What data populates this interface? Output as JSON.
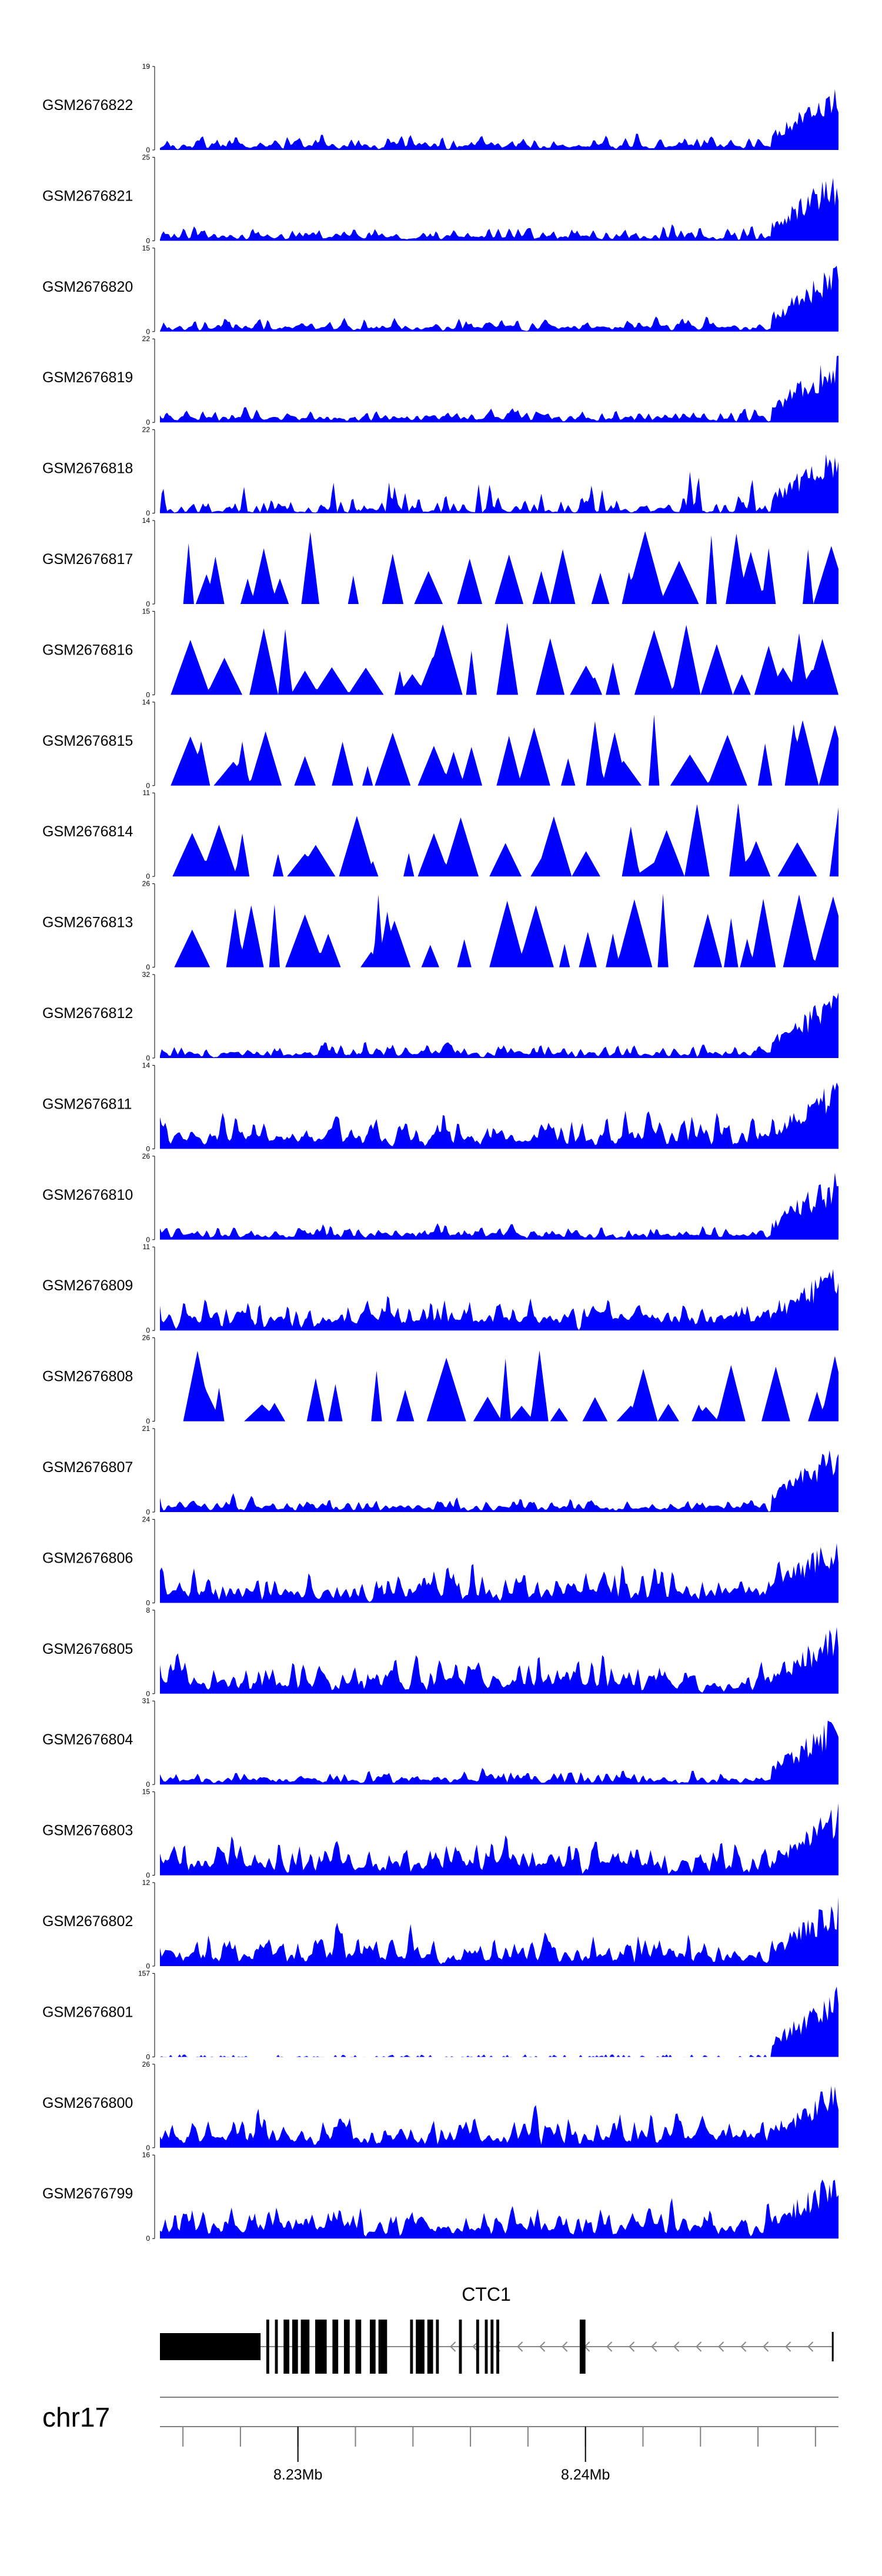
{
  "chart_data": {
    "type": "area",
    "title": "",
    "x_unit": "Mb",
    "xlim": [
      8.2252,
      8.2488
    ],
    "tracks": [
      {
        "name": "GSM2676822",
        "ymax": 19,
        "ymin": 0,
        "seed": 11,
        "style": "dense"
      },
      {
        "name": "GSM2676821",
        "ymax": 25,
        "ymin": 0,
        "seed": 12,
        "style": "dense"
      },
      {
        "name": "GSM2676820",
        "ymax": 15,
        "ymin": 0,
        "seed": 13,
        "style": "dense"
      },
      {
        "name": "GSM2676819",
        "ymax": 22,
        "ymin": 0,
        "seed": 14,
        "style": "dense"
      },
      {
        "name": "GSM2676818",
        "ymax": 22,
        "ymin": 0,
        "seed": 15,
        "style": "spiky"
      },
      {
        "name": "GSM2676817",
        "ymax": 14,
        "ymin": 0,
        "seed": 16,
        "style": "sparse"
      },
      {
        "name": "GSM2676816",
        "ymax": 15,
        "ymin": 0,
        "seed": 17,
        "style": "sparse"
      },
      {
        "name": "GSM2676815",
        "ymax": 14,
        "ymin": 0,
        "seed": 18,
        "style": "sparse"
      },
      {
        "name": "GSM2676814",
        "ymax": 11,
        "ymin": 0,
        "seed": 19,
        "style": "sparse"
      },
      {
        "name": "GSM2676813",
        "ymax": 26,
        "ymin": 0,
        "seed": 20,
        "style": "sparse"
      },
      {
        "name": "GSM2676812",
        "ymax": 32,
        "ymin": 0,
        "seed": 21,
        "style": "dense"
      },
      {
        "name": "GSM2676811",
        "ymax": 14,
        "ymin": 0,
        "seed": 22,
        "style": "busy"
      },
      {
        "name": "GSM2676810",
        "ymax": 26,
        "ymin": 0,
        "seed": 23,
        "style": "dense"
      },
      {
        "name": "GSM2676809",
        "ymax": 11,
        "ymin": 0,
        "seed": 24,
        "style": "busy"
      },
      {
        "name": "GSM2676808",
        "ymax": 26,
        "ymin": 0,
        "seed": 25,
        "style": "sparse"
      },
      {
        "name": "GSM2676807",
        "ymax": 21,
        "ymin": 0,
        "seed": 26,
        "style": "dense"
      },
      {
        "name": "GSM2676806",
        "ymax": 24,
        "ymin": 0,
        "seed": 27,
        "style": "busy"
      },
      {
        "name": "GSM2676805",
        "ymax": 8,
        "ymin": 0,
        "seed": 28,
        "style": "busy"
      },
      {
        "name": "GSM2676804",
        "ymax": 31,
        "ymin": 0,
        "seed": 29,
        "style": "dense"
      },
      {
        "name": "GSM2676803",
        "ymax": 15,
        "ymin": 0,
        "seed": 30,
        "style": "busy"
      },
      {
        "name": "GSM2676802",
        "ymax": 12,
        "ymin": 0,
        "seed": 31,
        "style": "busy"
      },
      {
        "name": "GSM2676801",
        "ymax": 157,
        "ymin": 0,
        "seed": 32,
        "style": "flat"
      },
      {
        "name": "GSM2676800",
        "ymax": 26,
        "ymin": 0,
        "seed": 33,
        "style": "busy"
      },
      {
        "name": "GSM2676799",
        "ymax": 16,
        "ymin": 0,
        "seed": 34,
        "style": "busy"
      }
    ],
    "gene": {
      "name": "CTC1",
      "strand": "-",
      "exons_mb": [
        [
          8.2252,
          8.2287
        ],
        [
          8.2289,
          8.229
        ],
        [
          8.2292,
          8.2293
        ],
        [
          8.2295,
          8.2297
        ],
        [
          8.2298,
          8.23
        ],
        [
          8.2301,
          8.2304
        ],
        [
          8.2306,
          8.231
        ],
        [
          8.2312,
          8.2314
        ],
        [
          8.2316,
          8.2318
        ],
        [
          8.232,
          8.2322
        ],
        [
          8.2325,
          8.2327
        ],
        [
          8.2328,
          8.2331
        ],
        [
          8.2339,
          8.234
        ],
        [
          8.2341,
          8.2344
        ],
        [
          8.2345,
          8.2347
        ],
        [
          8.2348,
          8.2349
        ],
        [
          8.2356,
          8.2357
        ],
        [
          8.2362,
          8.2363
        ],
        [
          8.2365,
          8.2366
        ],
        [
          8.2367,
          8.2368
        ],
        [
          8.2369,
          8.237
        ],
        [
          8.2398,
          8.24
        ]
      ],
      "intron_end_mb": 8.2486
    },
    "chromosome": "chr17",
    "axis": {
      "ticks_mb": [
        8.226,
        8.228,
        8.23,
        8.232,
        8.234,
        8.236,
        8.238,
        8.24,
        8.242,
        8.244,
        8.246,
        8.248
      ],
      "labeled_ticks": [
        {
          "value_mb": 8.23,
          "label": "8.23Mb"
        },
        {
          "value_mb": 8.24,
          "label": "8.24Mb"
        }
      ]
    },
    "colors": {
      "signal": "#0000ff",
      "gene": "#000000",
      "axis": "#808080"
    }
  }
}
